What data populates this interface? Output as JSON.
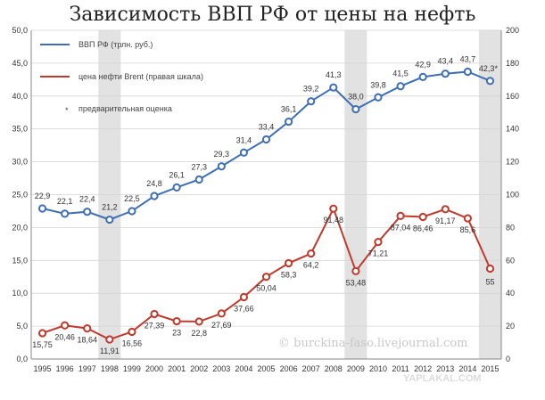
{
  "chart_data": {
    "type": "line",
    "title": "Зависимость ВВП РФ от цены на нефть",
    "x": [
      "1995",
      "1996",
      "1997",
      "1998",
      "1999",
      "2000",
      "2001",
      "2002",
      "2003",
      "2004",
      "2005",
      "2006",
      "2007",
      "2008",
      "2009",
      "2010",
      "2011",
      "2012",
      "2013",
      "2014",
      "2015"
    ],
    "y_left_ticks": [
      "0,0",
      "5,0",
      "10,0",
      "15,0",
      "20,0",
      "25,0",
      "30,0",
      "35,0",
      "40,0",
      "45,0",
      "50,0"
    ],
    "y_right_ticks": [
      "0",
      "20",
      "40",
      "60",
      "80",
      "100",
      "120",
      "140",
      "160",
      "180",
      "200"
    ],
    "ylim_left": [
      0,
      50
    ],
    "ylim_right": [
      0,
      200
    ],
    "shaded_years": [
      "1998",
      "2009",
      "2015"
    ],
    "grid": "horizontal",
    "legend_position": "top-left",
    "series": [
      {
        "name": "ВВП РФ (трлн. руб.)",
        "axis": "left",
        "color": "#3e6fb5",
        "values": [
          22.9,
          22.1,
          22.4,
          21.2,
          22.5,
          24.8,
          26.1,
          27.3,
          29.3,
          31.4,
          33.4,
          36.1,
          39.2,
          41.3,
          38.0,
          39.8,
          41.5,
          42.9,
          43.4,
          43.7,
          42.3
        ],
        "labels": [
          "22,9",
          "22,1",
          "22,4",
          "21,2",
          "22,5",
          "24,8",
          "26,1",
          "27,3",
          "29,3",
          "31,4",
          "33,4",
          "36,1",
          "39,2",
          "41,3",
          "38,0",
          "39,8",
          "41,5",
          "42,9",
          "43,4",
          "43,7",
          "42,3*"
        ]
      },
      {
        "name": "цена нефти Brent (правая шкала)",
        "axis": "right",
        "color": "#c0392b",
        "values": [
          15.75,
          20.46,
          18.64,
          11.91,
          16.56,
          27.39,
          23,
          22.8,
          27.69,
          37.66,
          50.04,
          58.3,
          64.2,
          91.48,
          53.48,
          71.21,
          87.04,
          86.46,
          91.17,
          85.6,
          55
        ],
        "labels": [
          "15,75",
          "20,46",
          "18,64",
          "11,91",
          "16,56",
          "27,39",
          "23",
          "22,8",
          "27,69",
          "37,66",
          "50,04",
          "58,3",
          "64,2",
          "91,48",
          "53,48",
          "71,21",
          "87,04",
          "86,46",
          "91,17",
          "85,6",
          "55"
        ]
      }
    ],
    "note": "предварительная оценка",
    "note_mark": "*",
    "watermark": "© burckina-faso.livejournal.com",
    "brand": "YAPLAKAL.COM"
  }
}
